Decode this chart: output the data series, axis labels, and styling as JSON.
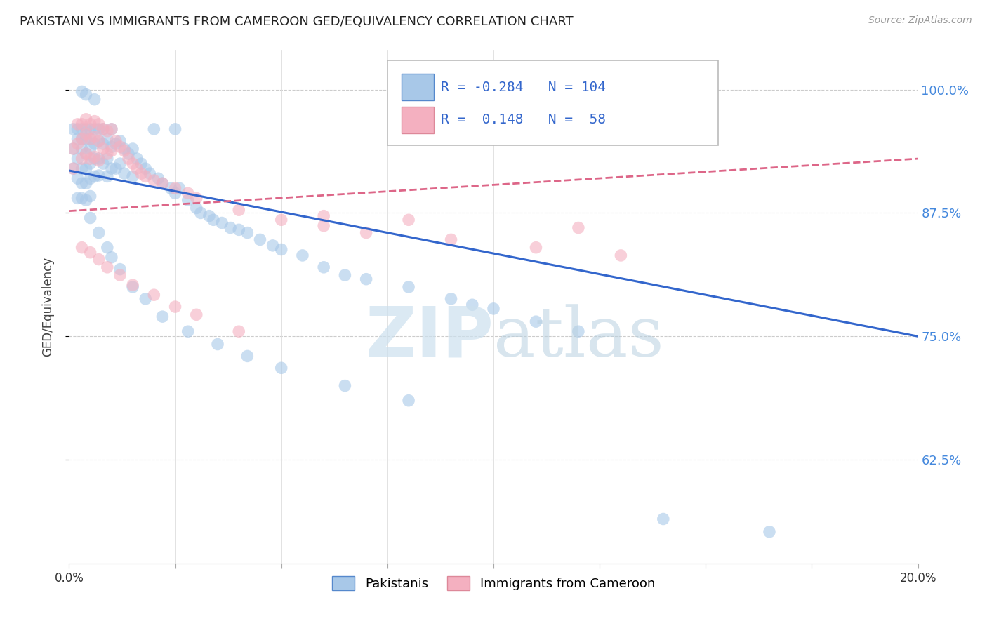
{
  "title": "PAKISTANI VS IMMIGRANTS FROM CAMEROON GED/EQUIVALENCY CORRELATION CHART",
  "source": "Source: ZipAtlas.com",
  "ylabel": "GED/Equivalency",
  "ytick_labels": [
    "100.0%",
    "87.5%",
    "75.0%",
    "62.5%"
  ],
  "ytick_values": [
    1.0,
    0.875,
    0.75,
    0.625
  ],
  "xlim": [
    0.0,
    0.2
  ],
  "ylim": [
    0.52,
    1.04
  ],
  "blue_R": -0.284,
  "blue_N": 104,
  "pink_R": 0.148,
  "pink_N": 58,
  "blue_color": "#a8c8e8",
  "pink_color": "#f4b0c0",
  "blue_line_color": "#3366cc",
  "pink_line_color": "#dd6688",
  "legend_blue_label": "Pakistanis",
  "legend_pink_label": "Immigrants from Cameroon",
  "background_color": "#ffffff",
  "blue_line_y0": 0.918,
  "blue_line_y1": 0.75,
  "pink_line_y0": 0.877,
  "pink_line_y1": 0.93,
  "blue_scatter_x": [
    0.001,
    0.001,
    0.001,
    0.002,
    0.002,
    0.002,
    0.002,
    0.002,
    0.003,
    0.003,
    0.003,
    0.003,
    0.003,
    0.003,
    0.004,
    0.004,
    0.004,
    0.004,
    0.004,
    0.004,
    0.005,
    0.005,
    0.005,
    0.005,
    0.005,
    0.005,
    0.006,
    0.006,
    0.006,
    0.006,
    0.007,
    0.007,
    0.007,
    0.007,
    0.008,
    0.008,
    0.008,
    0.009,
    0.009,
    0.009,
    0.01,
    0.01,
    0.01,
    0.011,
    0.011,
    0.012,
    0.012,
    0.013,
    0.013,
    0.014,
    0.015,
    0.015,
    0.016,
    0.017,
    0.018,
    0.019,
    0.02,
    0.021,
    0.022,
    0.024,
    0.025,
    0.026,
    0.028,
    0.03,
    0.031,
    0.033,
    0.034,
    0.036,
    0.038,
    0.04,
    0.042,
    0.045,
    0.048,
    0.05,
    0.055,
    0.06,
    0.065,
    0.07,
    0.08,
    0.09,
    0.095,
    0.1,
    0.11,
    0.12,
    0.005,
    0.007,
    0.009,
    0.01,
    0.012,
    0.015,
    0.018,
    0.022,
    0.028,
    0.035,
    0.042,
    0.05,
    0.065,
    0.08,
    0.14,
    0.165,
    0.003,
    0.004,
    0.006,
    0.025
  ],
  "blue_scatter_y": [
    0.96,
    0.94,
    0.92,
    0.96,
    0.95,
    0.93,
    0.91,
    0.89,
    0.96,
    0.95,
    0.94,
    0.92,
    0.905,
    0.89,
    0.96,
    0.95,
    0.935,
    0.92,
    0.905,
    0.888,
    0.96,
    0.95,
    0.94,
    0.925,
    0.91,
    0.892,
    0.96,
    0.945,
    0.93,
    0.912,
    0.96,
    0.948,
    0.93,
    0.913,
    0.96,
    0.945,
    0.925,
    0.95,
    0.93,
    0.912,
    0.96,
    0.942,
    0.92,
    0.945,
    0.92,
    0.948,
    0.925,
    0.94,
    0.915,
    0.935,
    0.94,
    0.912,
    0.93,
    0.925,
    0.92,
    0.915,
    0.96,
    0.91,
    0.905,
    0.9,
    0.895,
    0.9,
    0.888,
    0.88,
    0.875,
    0.872,
    0.868,
    0.865,
    0.86,
    0.858,
    0.855,
    0.848,
    0.842,
    0.838,
    0.832,
    0.82,
    0.812,
    0.808,
    0.8,
    0.788,
    0.782,
    0.778,
    0.765,
    0.755,
    0.87,
    0.855,
    0.84,
    0.83,
    0.818,
    0.8,
    0.788,
    0.77,
    0.755,
    0.742,
    0.73,
    0.718,
    0.7,
    0.685,
    0.565,
    0.552,
    0.998,
    0.995,
    0.99,
    0.96
  ],
  "pink_scatter_x": [
    0.001,
    0.001,
    0.002,
    0.002,
    0.003,
    0.003,
    0.003,
    0.004,
    0.004,
    0.004,
    0.005,
    0.005,
    0.005,
    0.006,
    0.006,
    0.006,
    0.007,
    0.007,
    0.007,
    0.008,
    0.008,
    0.009,
    0.009,
    0.01,
    0.01,
    0.011,
    0.012,
    0.013,
    0.014,
    0.015,
    0.016,
    0.017,
    0.018,
    0.02,
    0.022,
    0.025,
    0.028,
    0.03,
    0.003,
    0.005,
    0.007,
    0.009,
    0.012,
    0.015,
    0.02,
    0.025,
    0.03,
    0.04,
    0.05,
    0.06,
    0.07,
    0.09,
    0.11,
    0.13,
    0.04,
    0.06,
    0.08,
    0.12
  ],
  "pink_scatter_y": [
    0.94,
    0.92,
    0.965,
    0.945,
    0.965,
    0.95,
    0.93,
    0.97,
    0.955,
    0.935,
    0.965,
    0.95,
    0.93,
    0.968,
    0.952,
    0.932,
    0.965,
    0.948,
    0.928,
    0.96,
    0.94,
    0.958,
    0.935,
    0.96,
    0.938,
    0.948,
    0.942,
    0.938,
    0.93,
    0.925,
    0.92,
    0.915,
    0.912,
    0.908,
    0.905,
    0.9,
    0.895,
    0.89,
    0.84,
    0.835,
    0.828,
    0.82,
    0.812,
    0.802,
    0.792,
    0.78,
    0.772,
    0.755,
    0.868,
    0.862,
    0.855,
    0.848,
    0.84,
    0.832,
    0.878,
    0.872,
    0.868,
    0.86
  ]
}
